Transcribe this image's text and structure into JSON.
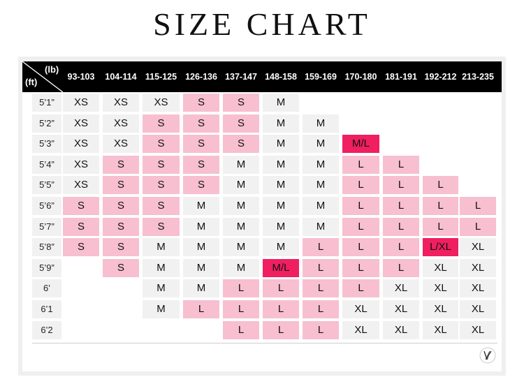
{
  "title": "SIZE CHART",
  "axis": {
    "weight_unit": "(lb)",
    "height_unit": "(ft)"
  },
  "weights": [
    "93-103",
    "104-114",
    "115-125",
    "126-136",
    "137-147",
    "148-158",
    "159-169",
    "170-180",
    "181-191",
    "192-212",
    "213-235"
  ],
  "heights": [
    "5’1”",
    "5’2”",
    "5’3”",
    "5’4”",
    "5’5”",
    "5’6”",
    "5’7”",
    "5’8”",
    "5’9”",
    "6’",
    "6’1",
    "6’2"
  ],
  "rows": [
    [
      [
        "XS",
        "n"
      ],
      [
        "XS",
        "n"
      ],
      [
        "XS",
        "n"
      ],
      [
        "S",
        "s"
      ],
      [
        "S",
        "s"
      ],
      [
        "M",
        "n"
      ],
      null,
      null,
      null,
      null,
      null
    ],
    [
      [
        "XS",
        "n"
      ],
      [
        "XS",
        "n"
      ],
      [
        "S",
        "s"
      ],
      [
        "S",
        "s"
      ],
      [
        "S",
        "s"
      ],
      [
        "M",
        "n"
      ],
      [
        "M",
        "n"
      ],
      null,
      null,
      null,
      null
    ],
    [
      [
        "XS",
        "n"
      ],
      [
        "XS",
        "n"
      ],
      [
        "S",
        "s"
      ],
      [
        "S",
        "s"
      ],
      [
        "S",
        "s"
      ],
      [
        "M",
        "n"
      ],
      [
        "M",
        "n"
      ],
      [
        "M/L",
        "h"
      ],
      null,
      null,
      null
    ],
    [
      [
        "XS",
        "n"
      ],
      [
        "S",
        "s"
      ],
      [
        "S",
        "s"
      ],
      [
        "S",
        "s"
      ],
      [
        "M",
        "n"
      ],
      [
        "M",
        "n"
      ],
      [
        "M",
        "n"
      ],
      [
        "L",
        "s"
      ],
      [
        "L",
        "s"
      ],
      null,
      null
    ],
    [
      [
        "XS",
        "n"
      ],
      [
        "S",
        "s"
      ],
      [
        "S",
        "s"
      ],
      [
        "S",
        "s"
      ],
      [
        "M",
        "n"
      ],
      [
        "M",
        "n"
      ],
      [
        "M",
        "n"
      ],
      [
        "L",
        "s"
      ],
      [
        "L",
        "s"
      ],
      [
        "L",
        "s"
      ],
      null
    ],
    [
      [
        "S",
        "s"
      ],
      [
        "S",
        "s"
      ],
      [
        "S",
        "s"
      ],
      [
        "M",
        "n"
      ],
      [
        "M",
        "n"
      ],
      [
        "M",
        "n"
      ],
      [
        "M",
        "n"
      ],
      [
        "L",
        "s"
      ],
      [
        "L",
        "s"
      ],
      [
        "L",
        "s"
      ],
      [
        "L",
        "s"
      ]
    ],
    [
      [
        "S",
        "s"
      ],
      [
        "S",
        "s"
      ],
      [
        "S",
        "s"
      ],
      [
        "M",
        "n"
      ],
      [
        "M",
        "n"
      ],
      [
        "M",
        "n"
      ],
      [
        "M",
        "n"
      ],
      [
        "L",
        "s"
      ],
      [
        "L",
        "s"
      ],
      [
        "L",
        "s"
      ],
      [
        "L",
        "s"
      ]
    ],
    [
      [
        "S",
        "s"
      ],
      [
        "S",
        "s"
      ],
      [
        "M",
        "n"
      ],
      [
        "M",
        "n"
      ],
      [
        "M",
        "n"
      ],
      [
        "M",
        "n"
      ],
      [
        "L",
        "s"
      ],
      [
        "L",
        "s"
      ],
      [
        "L",
        "s"
      ],
      [
        "L/XL",
        "h"
      ],
      [
        "XL",
        "n"
      ]
    ],
    [
      null,
      [
        "S",
        "s"
      ],
      [
        "M",
        "n"
      ],
      [
        "M",
        "n"
      ],
      [
        "M",
        "n"
      ],
      [
        "M/L",
        "h"
      ],
      [
        "L",
        "s"
      ],
      [
        "L",
        "s"
      ],
      [
        "L",
        "s"
      ],
      [
        "XL",
        "n"
      ],
      [
        "XL",
        "n"
      ]
    ],
    [
      null,
      null,
      [
        "M",
        "n"
      ],
      [
        "M",
        "n"
      ],
      [
        "L",
        "s"
      ],
      [
        "L",
        "s"
      ],
      [
        "L",
        "s"
      ],
      [
        "L",
        "s"
      ],
      [
        "XL",
        "n"
      ],
      [
        "XL",
        "n"
      ],
      [
        "XL",
        "n"
      ]
    ],
    [
      null,
      null,
      [
        "M",
        "n"
      ],
      [
        "L",
        "s"
      ],
      [
        "L",
        "s"
      ],
      [
        "L",
        "s"
      ],
      [
        "L",
        "s"
      ],
      [
        "XL",
        "n"
      ],
      [
        "XL",
        "n"
      ],
      [
        "XL",
        "n"
      ],
      [
        "XL",
        "n"
      ]
    ],
    [
      null,
      null,
      null,
      null,
      [
        "L",
        "s"
      ],
      [
        "L",
        "s"
      ],
      [
        "L",
        "s"
      ],
      [
        "XL",
        "n"
      ],
      [
        "XL",
        "n"
      ],
      [
        "XL",
        "n"
      ],
      [
        "XL",
        "n"
      ]
    ]
  ],
  "colors": {
    "standard": "#f1f1f1",
    "soft_pink": "#f7bfd0",
    "hot_pink": "#ef1f60"
  },
  "logo_icon": "brand-monogram-icon"
}
